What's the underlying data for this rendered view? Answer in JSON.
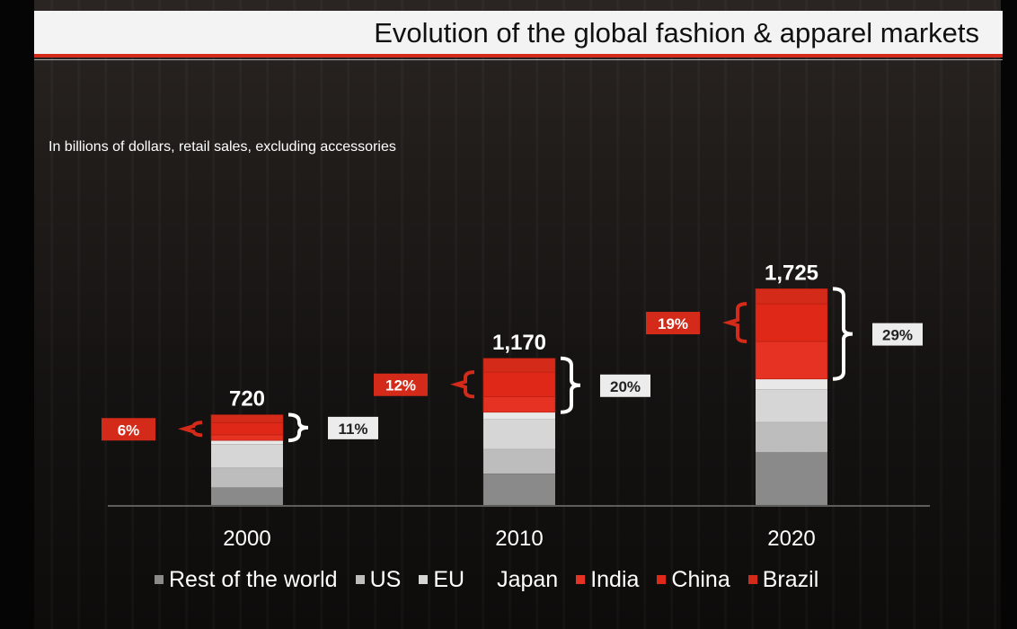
{
  "header": {
    "title": "Evolution of the global fashion & apparel markets",
    "subtitle": "In billions of dollars, retail sales, excluding accessories"
  },
  "colors": {
    "accent_red": "#d42a1a",
    "rest_of_world": "#8a8a8a",
    "us": "#bdbdbd",
    "eu": "#d6d6d6",
    "japan": "#e8e8e8",
    "india": "#e63222",
    "china": "#e02818",
    "brazil": "#d42a1a"
  },
  "chart_data": {
    "type": "bar",
    "stacked": true,
    "categories": [
      "2000",
      "2010",
      "2020"
    ],
    "totals": [
      720,
      1170,
      1725
    ],
    "total_labels": [
      "720",
      "1,170",
      "1,725"
    ],
    "series": [
      {
        "name": "Rest of the world",
        "values": [
          140,
          250,
          420
        ]
      },
      {
        "name": "US",
        "values": [
          155,
          195,
          240
        ]
      },
      {
        "name": "EU",
        "values": [
          190,
          240,
          260
        ]
      },
      {
        "name": "Japan",
        "values": [
          30,
          55,
          85
        ]
      },
      {
        "name": "India",
        "values": [
          45,
          125,
          300
        ]
      },
      {
        "name": "China",
        "values": [
          95,
          195,
          300
        ]
      },
      {
        "name": "Brazil",
        "values": [
          65,
          110,
          120
        ]
      }
    ],
    "china_share_labels": [
      "6%",
      "12%",
      "19%"
    ],
    "emerging_share_labels": [
      "11%",
      "20%",
      "29%"
    ],
    "ylim": [
      0,
      1900
    ],
    "legend_position": "bottom",
    "grid": false
  },
  "legend": [
    {
      "label": "Rest of the world",
      "color": "#8a8a8a"
    },
    {
      "label": "US",
      "color": "#bdbdbd"
    },
    {
      "label": "EU",
      "color": "#d6d6d6"
    },
    {
      "label": "Japan",
      "color": "none"
    },
    {
      "label": "India",
      "color": "#e63222"
    },
    {
      "label": "China",
      "color": "#e02818"
    },
    {
      "label": "Brazil",
      "color": "#d42a1a"
    }
  ]
}
